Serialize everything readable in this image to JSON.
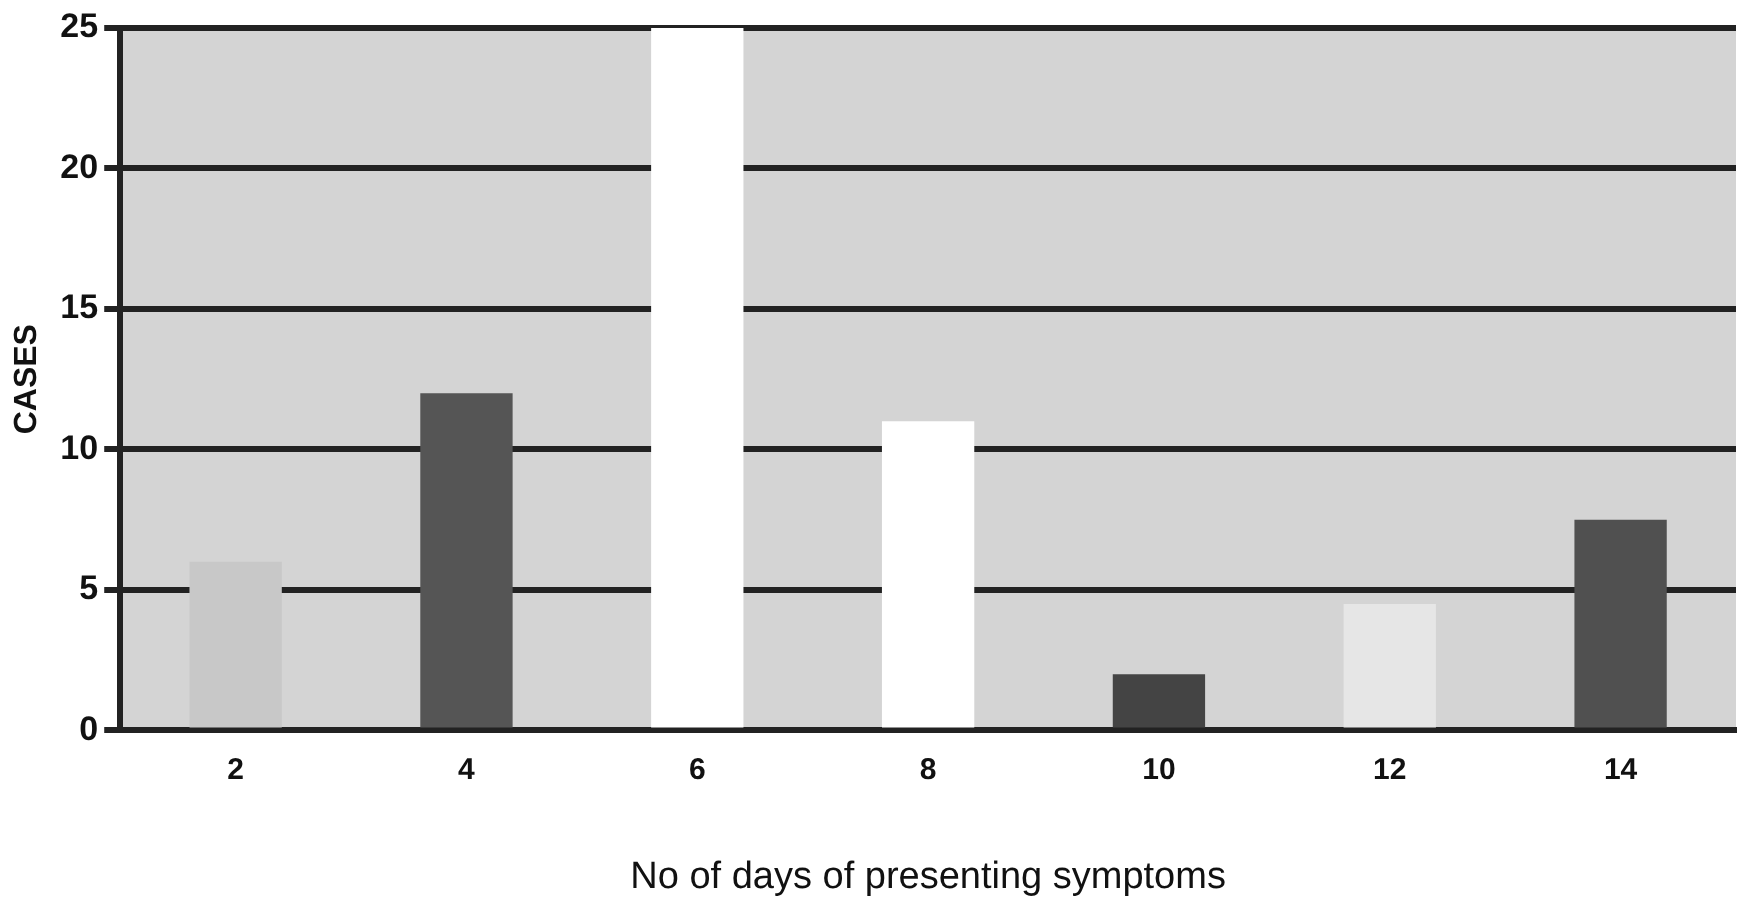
{
  "chart_data": {
    "type": "bar",
    "xlabel": "No of days of presenting symptoms",
    "ylabel": "CASES",
    "categories": [
      "2",
      "4",
      "6",
      "8",
      "10",
      "12",
      "14"
    ],
    "values": [
      6,
      12,
      25,
      11,
      2,
      4.5,
      7.5
    ],
    "colors": [
      "#c8c8c8",
      "#555555",
      "#ffffff",
      "#ffffff",
      "#444444",
      "#e6e6e6",
      "#505050"
    ],
    "ylim": [
      0,
      25
    ],
    "yticks": [
      0,
      5,
      10,
      15,
      20,
      25
    ],
    "grid": "y",
    "legend": false
  }
}
